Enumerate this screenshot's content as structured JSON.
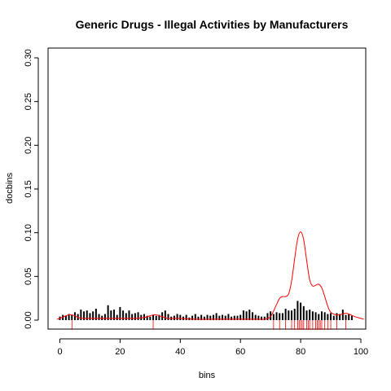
{
  "chart_data": {
    "type": "bar",
    "title": "Generic Drugs - Illegal Activities by Manufacturers",
    "xlabel": "bins",
    "ylabel": "docbins",
    "xlim": [
      0,
      101
    ],
    "ylim": [
      0,
      0.31
    ],
    "x_ticks": [
      0,
      20,
      40,
      60,
      80,
      100
    ],
    "y_ticks": [
      0.0,
      0.05,
      0.1,
      0.15,
      0.2,
      0.25,
      0.3
    ],
    "x_tick_labels": [
      "0",
      "20",
      "40",
      "60",
      "80",
      "100"
    ],
    "y_tick_labels": [
      "0.00",
      "0.05",
      "0.10",
      "0.15",
      "0.20",
      "0.25",
      "0.30"
    ],
    "grid": false,
    "series": [
      {
        "role": "histogram",
        "color": "#000000",
        "x": [
          0,
          1,
          2,
          3,
          4,
          5,
          6,
          7,
          8,
          9,
          10,
          11,
          12,
          13,
          14,
          15,
          16,
          17,
          18,
          19,
          20,
          21,
          22,
          23,
          24,
          25,
          26,
          27,
          28,
          29,
          30,
          31,
          32,
          33,
          34,
          35,
          36,
          37,
          38,
          39,
          40,
          41,
          42,
          43,
          44,
          45,
          46,
          47,
          48,
          49,
          50,
          51,
          52,
          53,
          54,
          55,
          56,
          57,
          58,
          59,
          60,
          61,
          62,
          63,
          64,
          65,
          66,
          67,
          68,
          69,
          70,
          71,
          72,
          73,
          74,
          75,
          76,
          77,
          78,
          79,
          80,
          81,
          82,
          83,
          84,
          85,
          86,
          87,
          88,
          89,
          90,
          91,
          92,
          93,
          94,
          95,
          96,
          97
        ],
        "values": [
          0.004,
          0.006,
          0.005,
          0.007,
          0.006,
          0.009,
          0.007,
          0.012,
          0.01,
          0.011,
          0.008,
          0.01,
          0.013,
          0.007,
          0.005,
          0.007,
          0.017,
          0.011,
          0.012,
          0.006,
          0.015,
          0.011,
          0.008,
          0.011,
          0.007,
          0.008,
          0.009,
          0.006,
          0.007,
          0.005,
          0.004,
          0.006,
          0.005,
          0.006,
          0.009,
          0.011,
          0.007,
          0.004,
          0.005,
          0.007,
          0.006,
          0.004,
          0.006,
          0.003,
          0.005,
          0.007,
          0.004,
          0.006,
          0.004,
          0.006,
          0.005,
          0.006,
          0.008,
          0.005,
          0.006,
          0.005,
          0.007,
          0.004,
          0.005,
          0.005,
          0.006,
          0.011,
          0.01,
          0.012,
          0.009,
          0.006,
          0.005,
          0.004,
          0.004,
          0.008,
          0.01,
          0.007,
          0.009,
          0.008,
          0.008,
          0.013,
          0.011,
          0.011,
          0.013,
          0.022,
          0.02,
          0.016,
          0.011,
          0.012,
          0.01,
          0.009,
          0.007,
          0.01,
          0.009,
          0.007,
          0.008,
          0.005,
          0.008,
          0.007,
          0.012,
          0.006,
          0.007,
          0.005
        ]
      },
      {
        "role": "density",
        "color": "#ff0000",
        "x": [
          -1,
          0,
          2,
          3,
          4,
          5,
          6,
          8,
          10,
          15,
          20,
          25,
          28,
          30,
          31,
          32,
          34,
          36,
          40,
          45,
          50,
          55,
          60,
          63,
          66,
          68,
          70,
          72,
          73,
          74,
          75,
          76,
          77,
          78,
          79,
          80,
          81,
          82,
          83,
          84,
          85,
          86,
          87,
          88,
          89,
          90,
          92,
          94,
          95,
          96,
          98,
          100,
          101
        ],
        "values": [
          0.001,
          0.002,
          0.005,
          0.006,
          0.006,
          0.005,
          0.003,
          0.002,
          0.002,
          0.002,
          0.002,
          0.002,
          0.003,
          0.005,
          0.006,
          0.006,
          0.004,
          0.002,
          0.002,
          0.001,
          0.001,
          0.001,
          0.001,
          0.001,
          0.001,
          0.001,
          0.004,
          0.018,
          0.025,
          0.027,
          0.027,
          0.03,
          0.045,
          0.07,
          0.093,
          0.101,
          0.092,
          0.068,
          0.046,
          0.039,
          0.04,
          0.041,
          0.037,
          0.027,
          0.016,
          0.009,
          0.006,
          0.007,
          0.008,
          0.007,
          0.004,
          0.002,
          0.001
        ]
      },
      {
        "role": "rug",
        "color": "#ff0000",
        "x": [
          4,
          31,
          71,
          73,
          75,
          77,
          78,
          79,
          79.5,
          80,
          80.5,
          81,
          82,
          82.5,
          83,
          84,
          85,
          85.5,
          86,
          86.5,
          87,
          88,
          89,
          90,
          92,
          95
        ]
      }
    ]
  }
}
